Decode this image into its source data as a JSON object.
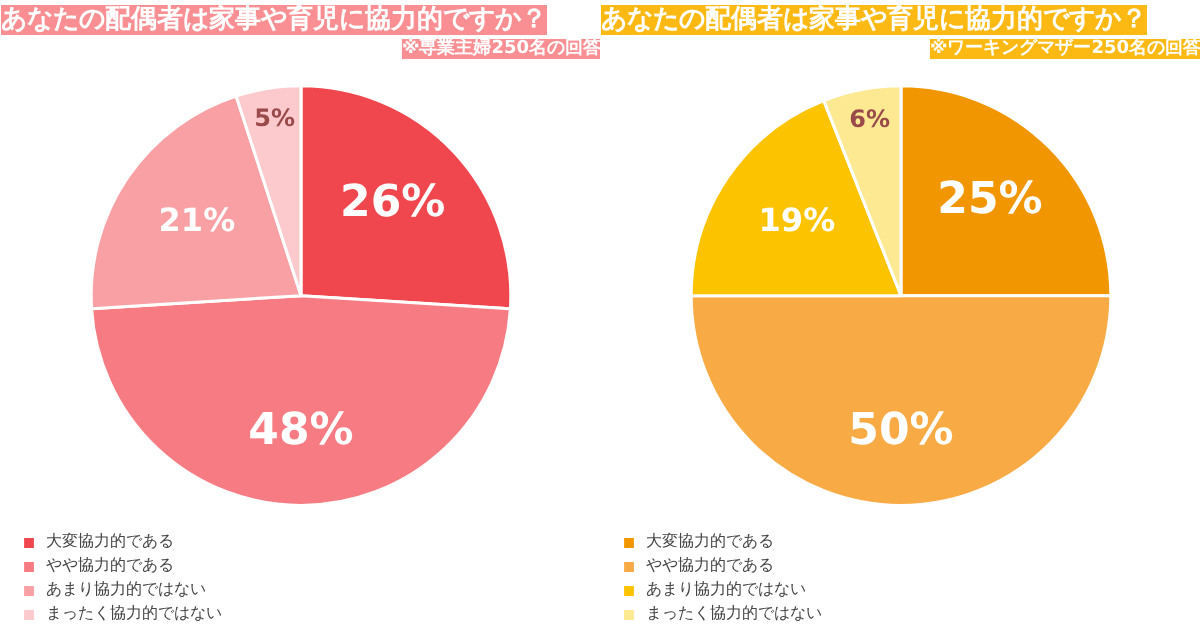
{
  "chart_data": [
    {
      "type": "pie",
      "title": "あなたの配偶者は家事や育児に協力的ですか？",
      "subtitle": "※専業主婦250名の回答",
      "categories": [
        "大変協力的である",
        "やや協力的である",
        "あまり協力的ではない",
        "まったく協力的ではない"
      ],
      "values": [
        26,
        48,
        21,
        5
      ],
      "value_labels": [
        "26%",
        "48%",
        "21%",
        "5%"
      ],
      "colors": [
        "#f0474f",
        "#f77b82",
        "#f9a0a5",
        "#fcc9cc"
      ],
      "legend": "bottom left"
    },
    {
      "type": "pie",
      "title": "あなたの配偶者は家事や育児に協力的ですか？",
      "subtitle": "※ワーキングマザー250名の回答",
      "categories": [
        "大変協力的である",
        "やや協力的である",
        "あまり協力的ではない",
        "まったく協力的ではない"
      ],
      "values": [
        25,
        50,
        19,
        6
      ],
      "value_labels": [
        "25%",
        "50%",
        "19%",
        "6%"
      ],
      "colors": [
        "#f29600",
        "#f8aa45",
        "#fcc300",
        "#fde992"
      ],
      "legend": "bottom left"
    }
  ]
}
